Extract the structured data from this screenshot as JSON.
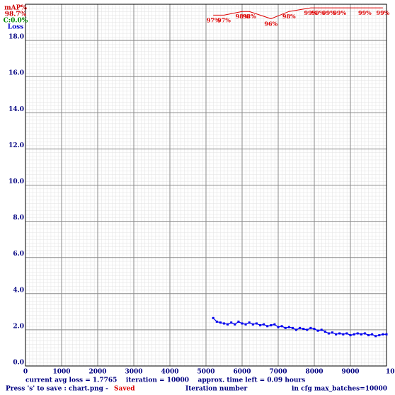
{
  "chart_data": {
    "type": "line",
    "legend": {
      "corner": "top-left"
    },
    "annotations": [
      {
        "text": "98.7%",
        "color": "#cc0000"
      },
      {
        "text": "C:0.0%",
        "color": "#008800"
      }
    ],
    "x_label": "Iteration number",
    "status": {
      "line1": "current avg loss = 1.7765    iteration = 10000    approx. time left = 0.09 hours",
      "save": "Press 's' to save : chart.png - ",
      "saved": "Saved",
      "cfg": "in cfg max_batches=10000"
    },
    "grid": true,
    "xlim": [
      0,
      10000
    ],
    "xticks": [
      0,
      1000,
      2000,
      3000,
      4000,
      5000,
      6000,
      7000,
      8000,
      9000,
      {
        "value": 10000,
        "label": "10"
      }
    ],
    "ylim": [
      0,
      20
    ],
    "yticks": [
      {
        "value": 0,
        "label": "0.0"
      },
      {
        "value": 2,
        "label": "2.0"
      },
      {
        "value": 4,
        "label": "4.0"
      },
      {
        "value": 6,
        "label": "6.0"
      },
      {
        "value": 8,
        "label": "8.0"
      },
      {
        "value": 10,
        "label": "10.0"
      },
      {
        "value": 12,
        "label": "12.0"
      },
      {
        "value": 14,
        "label": "14.0"
      },
      {
        "value": 16,
        "label": "16.0"
      },
      {
        "value": 18,
        "label": "18.0"
      }
    ],
    "y2lim": [
      0,
      100
    ],
    "series": [
      {
        "name": "mAP%",
        "color": "#dd0000",
        "axis": "y2",
        "x": [
          5200,
          5500,
          6000,
          6200,
          6800,
          7300,
          7900,
          8100,
          8400,
          8700,
          9400,
          9900
        ],
        "values": [
          97,
          97,
          98,
          98,
          96,
          98,
          99,
          99,
          99,
          99,
          99,
          99
        ],
        "value_labels": [
          "97%",
          "97%",
          "98%",
          "98%",
          "96%",
          "98%",
          "99%",
          "99%",
          "99%",
          "99%",
          "99%",
          "99%"
        ]
      },
      {
        "name": "Loss",
        "color": "#0000ee",
        "x": [
          5200,
          5300,
          5400,
          5500,
          5600,
          5700,
          5800,
          5900,
          6000,
          6100,
          6200,
          6300,
          6400,
          6500,
          6600,
          6700,
          6800,
          6900,
          7000,
          7100,
          7200,
          7300,
          7400,
          7500,
          7600,
          7700,
          7800,
          7900,
          8000,
          8100,
          8200,
          8300,
          8400,
          8500,
          8600,
          8700,
          8800,
          8900,
          9000,
          9100,
          9200,
          9300,
          9400,
          9500,
          9600,
          9700,
          9800,
          9900,
          10000
        ],
        "values": [
          2.65,
          2.45,
          2.4,
          2.35,
          2.3,
          2.4,
          2.3,
          2.45,
          2.35,
          2.3,
          2.4,
          2.3,
          2.35,
          2.25,
          2.3,
          2.2,
          2.25,
          2.3,
          2.15,
          2.2,
          2.1,
          2.15,
          2.1,
          2.0,
          2.1,
          2.05,
          2.0,
          2.1,
          2.05,
          1.95,
          2.0,
          1.9,
          1.8,
          1.85,
          1.75,
          1.8,
          1.75,
          1.8,
          1.7,
          1.75,
          1.8,
          1.75,
          1.8,
          1.7,
          1.75,
          1.65,
          1.7,
          1.75,
          1.75
        ]
      }
    ]
  }
}
